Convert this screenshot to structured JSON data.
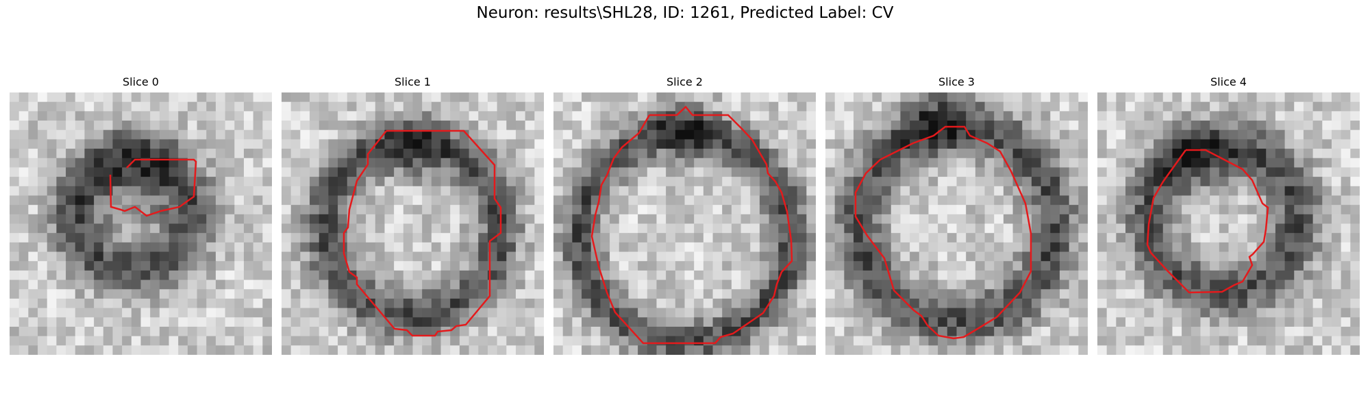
{
  "figure": {
    "title": "Neuron: results\\SHL28, ID: 1261, Predicted Label: CV"
  },
  "panels": [
    {
      "title": "Slice 0"
    },
    {
      "title": "Slice 1"
    },
    {
      "title": "Slice 2"
    },
    {
      "title": "Slice 3"
    },
    {
      "title": "Slice 4"
    }
  ],
  "colors": {
    "contour": "#e41a1c"
  }
}
